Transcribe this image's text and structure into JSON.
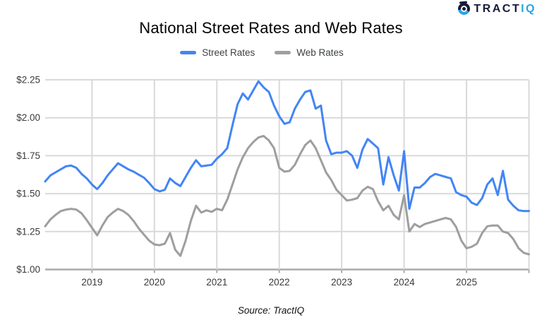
{
  "logo": {
    "brand_primary": "TRACT",
    "brand_accent": "IQ",
    "primary_color": "#161B3C",
    "accent_color": "#29A4E9"
  },
  "header": {
    "title": "National Street Rates and Web Rates"
  },
  "legend": {
    "street_label": "Street Rates",
    "web_label": "Web Rates"
  },
  "footer": {
    "source": "Source: TractIQ"
  },
  "chart_data": {
    "type": "line",
    "title": "National Street Rates and Web Rates",
    "xlabel": "",
    "ylabel": "",
    "x_start": "2018-04",
    "x_end": "2026-01",
    "x_interval": "monthly",
    "x_tick_labels": [
      "2019",
      "2020",
      "2021",
      "2022",
      "2023",
      "2024",
      "2025"
    ],
    "y_ticks": [
      1.0,
      1.25,
      1.5,
      1.75,
      2.0,
      2.25
    ],
    "y_tick_prefix": "$",
    "ylim": [
      1.0,
      2.25
    ],
    "grid": true,
    "legend_position": "top",
    "gridline_color": "#d9d9d9",
    "baseline_color": "#ababab",
    "series": [
      {
        "name": "Street Rates",
        "color": "#4285F4",
        "values": [
          1.58,
          1.62,
          1.64,
          1.66,
          1.68,
          1.685,
          1.67,
          1.63,
          1.6,
          1.56,
          1.53,
          1.57,
          1.62,
          1.66,
          1.7,
          1.68,
          1.66,
          1.645,
          1.625,
          1.605,
          1.57,
          1.53,
          1.515,
          1.525,
          1.6,
          1.57,
          1.55,
          1.61,
          1.67,
          1.72,
          1.68,
          1.685,
          1.69,
          1.73,
          1.76,
          1.8,
          1.95,
          2.09,
          2.16,
          2.12,
          2.18,
          2.24,
          2.2,
          2.17,
          2.08,
          2.01,
          1.96,
          1.97,
          2.06,
          2.12,
          2.17,
          2.18,
          2.06,
          2.08,
          1.85,
          1.76,
          1.77,
          1.77,
          1.78,
          1.75,
          1.67,
          1.79,
          1.86,
          1.83,
          1.8,
          1.56,
          1.74,
          1.62,
          1.52,
          1.78,
          1.4,
          1.54,
          1.54,
          1.57,
          1.61,
          1.63,
          1.62,
          1.61,
          1.6,
          1.51,
          1.49,
          1.48,
          1.44,
          1.425,
          1.47,
          1.56,
          1.6,
          1.49,
          1.65,
          1.46,
          1.42,
          1.39,
          1.385,
          1.385
        ]
      },
      {
        "name": "Web Rates",
        "color": "#9E9E9E",
        "values": [
          1.285,
          1.33,
          1.36,
          1.385,
          1.395,
          1.4,
          1.395,
          1.37,
          1.325,
          1.275,
          1.225,
          1.29,
          1.345,
          1.375,
          1.4,
          1.385,
          1.36,
          1.32,
          1.27,
          1.23,
          1.19,
          1.165,
          1.16,
          1.17,
          1.24,
          1.13,
          1.09,
          1.19,
          1.32,
          1.42,
          1.375,
          1.39,
          1.38,
          1.4,
          1.39,
          1.46,
          1.56,
          1.66,
          1.74,
          1.8,
          1.84,
          1.87,
          1.88,
          1.85,
          1.8,
          1.67,
          1.645,
          1.65,
          1.69,
          1.76,
          1.82,
          1.85,
          1.8,
          1.72,
          1.64,
          1.59,
          1.525,
          1.49,
          1.455,
          1.46,
          1.47,
          1.52,
          1.545,
          1.53,
          1.45,
          1.39,
          1.42,
          1.36,
          1.33,
          1.49,
          1.25,
          1.3,
          1.28,
          1.3,
          1.31,
          1.32,
          1.33,
          1.34,
          1.33,
          1.28,
          1.19,
          1.14,
          1.15,
          1.17,
          1.24,
          1.285,
          1.29,
          1.29,
          1.25,
          1.24,
          1.2,
          1.14,
          1.11,
          1.1
        ]
      }
    ]
  }
}
